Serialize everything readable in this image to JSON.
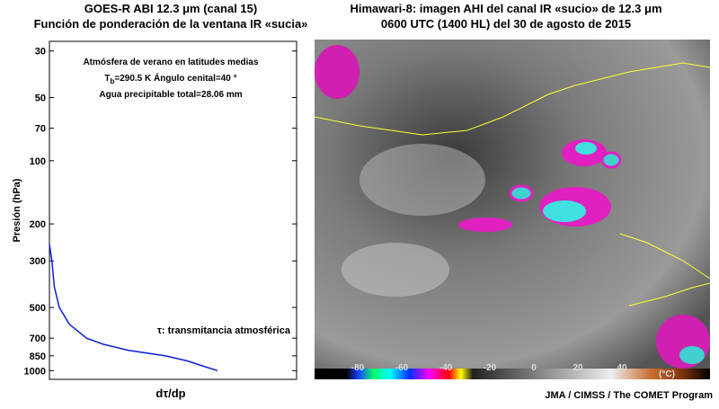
{
  "chart_data": {
    "type": "line",
    "title": [
      "GOES-R ABI 12.3 μm (canal 15)",
      "Función de ponderación de la ventana IR «sucia»"
    ],
    "annotations": [
      "Atmósfera de verano en latitudes medias",
      [
        "T",
        "b",
        "=290.5 K  Ángulo cenital=40 °"
      ],
      "Agua precipitable total=28.06 mm"
    ],
    "legend_text": "τ: transmitancia atmosférica",
    "y_label": "Presión (hPa)",
    "x_label": "dτ/dp",
    "log_y": true,
    "inverted_y": true,
    "ylim": [
      27,
      1100
    ],
    "yticks": [
      30,
      50,
      70,
      100,
      200,
      300,
      500,
      700,
      850,
      1000
    ],
    "xlim": [
      0,
      1
    ],
    "series": [
      {
        "color": "#0a1fd6",
        "x": [
          0,
          0.01,
          0.02,
          0.04,
          0.08,
          0.15,
          0.22,
          0.32,
          0.47,
          0.56,
          0.62,
          0.68
        ],
        "y": [
          250,
          300,
          400,
          500,
          600,
          700,
          750,
          800,
          850,
          900,
          950,
          1000
        ]
      }
    ]
  },
  "image_panel": {
    "title": [
      "Himawari-8: imagen AHI del canal IR «sucio» de 12.3 μm",
      "0600 UTC (1400 HL) del 30 de agosto de 2015"
    ],
    "colorbar_ticks": [
      -80,
      -60,
      -40,
      -20,
      0,
      20,
      40
    ],
    "colorbar_unit": "(°C)"
  },
  "credit": "JMA / CIMSS / The COMET Program"
}
